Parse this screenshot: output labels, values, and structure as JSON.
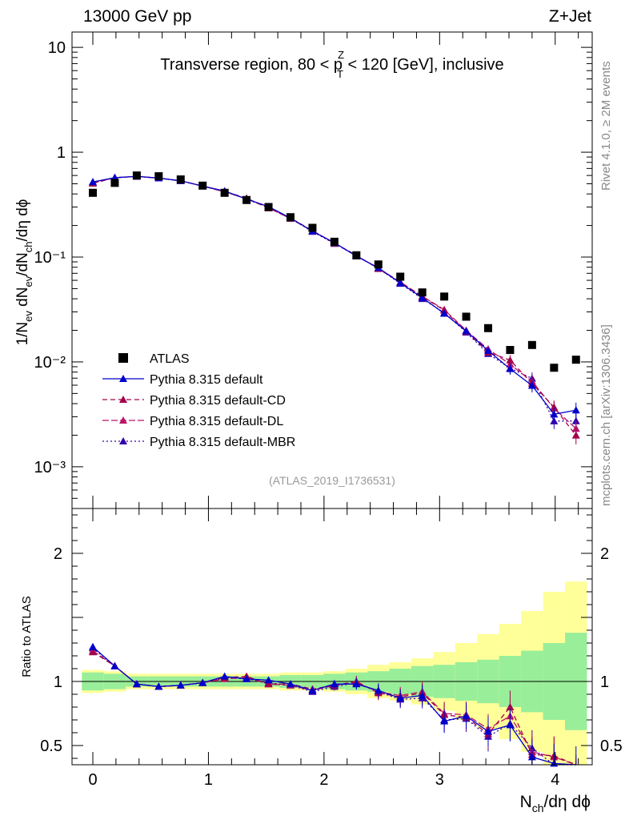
{
  "header": {
    "energy": "13000 GeV pp",
    "process": "Z+Jet",
    "title_pre": "Transverse region, 80 < p",
    "title_sup": "Z",
    "title_sub": "T",
    "title_post": " < 120 [GeV], inclusive",
    "side_right": "Rivet 4.1.0, ≥ 2M events",
    "side_right2": "mcplots.cern.ch [arXiv:1306.3436]",
    "analysis_tag": "(ATLAS_2019_I1736531)"
  },
  "upper_panel": {
    "ylabel": "1/N_ev dN_ev/dN_ch/dη dϕ",
    "ytick_labels": [
      "10",
      "1",
      "10⁻¹",
      "10⁻²",
      "10⁻³"
    ],
    "ylim": [
      0.0004,
      14
    ],
    "yscale": "log"
  },
  "lower_panel": {
    "ylabel": "Ratio to ATLAS",
    "ytick_labels": [
      "2",
      "1",
      "0.5"
    ],
    "ylim": [
      0.35,
      2.35
    ]
  },
  "xaxis": {
    "label": "N_ch/dη dϕ",
    "xlim": [
      -0.18,
      4.32
    ],
    "tick_labels": [
      "0",
      "1",
      "2",
      "3",
      "4"
    ]
  },
  "legend": [
    {
      "label": "ATLAS"
    },
    {
      "label": "Pythia 8.315 default"
    },
    {
      "label": "Pythia 8.315 default-CD"
    },
    {
      "label": "Pythia 8.315 default-DL"
    },
    {
      "label": "Pythia 8.315 default-MBR"
    }
  ],
  "colors": {
    "data": "#000000",
    "default": "#0000cc",
    "cd": "#a3004b",
    "dl": "#b8146a",
    "mbr": "#3300aa",
    "band_inner": "#99ee99",
    "band_outer": "#ffff99"
  },
  "chart_data": {
    "type": "scatter",
    "x": [
      0,
      0.19,
      0.38,
      0.57,
      0.76,
      0.95,
      1.14,
      1.33,
      1.52,
      1.71,
      1.9,
      2.09,
      2.28,
      2.47,
      2.66,
      2.85,
      3.04,
      3.23,
      3.42,
      3.61,
      3.8,
      3.99,
      4.18
    ],
    "bin_edges": [
      -0.095,
      0.095,
      0.285,
      0.475,
      0.665,
      0.855,
      1.045,
      1.235,
      1.425,
      1.615,
      1.805,
      1.995,
      2.185,
      2.375,
      2.565,
      2.755,
      2.945,
      3.135,
      3.325,
      3.515,
      3.705,
      3.895,
      4.085,
      4.275
    ],
    "data": [
      0.41,
      0.51,
      0.6,
      0.59,
      0.55,
      0.48,
      0.41,
      0.35,
      0.3,
      0.24,
      0.19,
      0.14,
      0.104,
      0.085,
      0.065,
      0.046,
      0.042,
      0.027,
      0.021,
      0.013,
      0.0145,
      0.0088,
      0.0105
    ],
    "series": [
      {
        "name": "Pythia 8.315 default",
        "key": "default",
        "dash": "",
        "ratio": [
          1.27,
          1.12,
          0.98,
          0.96,
          0.97,
          0.99,
          1.04,
          1.02,
          1.01,
          0.98,
          0.93,
          0.98,
          0.98,
          0.93,
          0.87,
          0.89,
          0.69,
          0.73,
          0.61,
          0.66,
          0.41,
          0.36,
          0.33
        ]
      },
      {
        "name": "Pythia 8.315 default-CD",
        "key": "cd",
        "dash": "6,4",
        "ratio": [
          1.23,
          1.12,
          0.98,
          0.96,
          0.97,
          0.99,
          1.03,
          1.04,
          0.98,
          0.98,
          0.94,
          0.97,
          1.0,
          0.91,
          0.88,
          0.91,
          0.74,
          0.72,
          0.59,
          0.8,
          0.43,
          0.42,
          0.19
        ]
      },
      {
        "name": "Pythia 8.315 default-DL",
        "key": "dl",
        "dash": "8,3",
        "ratio": [
          1.24,
          1.12,
          0.98,
          0.96,
          0.97,
          0.99,
          1.02,
          1.03,
          0.98,
          0.97,
          0.93,
          0.97,
          0.99,
          0.92,
          0.89,
          0.92,
          0.75,
          0.74,
          0.63,
          0.73,
          0.45,
          0.41,
          0.22
        ]
      },
      {
        "name": "Pythia 8.315 default-MBR",
        "key": "mbr",
        "dash": "2,3",
        "ratio": [
          1.26,
          1.12,
          0.98,
          0.96,
          0.97,
          0.99,
          1.03,
          1.02,
          0.99,
          0.97,
          0.92,
          0.96,
          0.99,
          0.92,
          0.86,
          0.87,
          0.7,
          0.71,
          0.57,
          0.67,
          0.48,
          0.31,
          0.26
        ]
      }
    ],
    "band_inner": [
      0.07,
      0.06,
      0.04,
      0.04,
      0.04,
      0.04,
      0.04,
      0.04,
      0.04,
      0.05,
      0.05,
      0.06,
      0.07,
      0.08,
      0.1,
      0.12,
      0.13,
      0.15,
      0.17,
      0.2,
      0.24,
      0.3,
      0.38
    ],
    "band_outer": [
      0.09,
      0.08,
      0.06,
      0.06,
      0.06,
      0.06,
      0.06,
      0.06,
      0.06,
      0.07,
      0.07,
      0.08,
      0.1,
      0.13,
      0.15,
      0.18,
      0.23,
      0.3,
      0.37,
      0.45,
      0.55,
      0.7,
      0.78
    ]
  }
}
